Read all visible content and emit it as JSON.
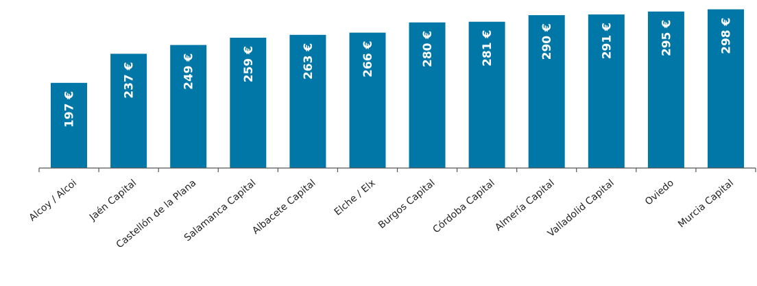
{
  "chart_data": {
    "type": "bar",
    "categories": [
      "Alcoy / Alcoi",
      "Jaén Capital",
      "Castellón de la Plana",
      "Salamanca Capital",
      "Albacete Capital",
      "Elche / Elx",
      "Burgos Capital",
      "Córdoba Capital",
      "Almería Capital",
      "Valladolid Capital",
      "Oviedo",
      "Murcia Capital"
    ],
    "values": [
      197,
      237,
      249,
      259,
      263,
      266,
      280,
      281,
      290,
      291,
      295,
      298
    ],
    "data_labels": [
      "197 €",
      "237 €",
      "249 €",
      "259 €",
      "263 €",
      "266 €",
      "280 €",
      "281 €",
      "290 €",
      "291 €",
      "295 €",
      "298 €"
    ],
    "unit": "€",
    "bar_color": "#0077a6",
    "title": "",
    "xlabel": "",
    "ylabel": "",
    "ylim": [
      80,
      300
    ],
    "grid": false,
    "legend": "none"
  }
}
